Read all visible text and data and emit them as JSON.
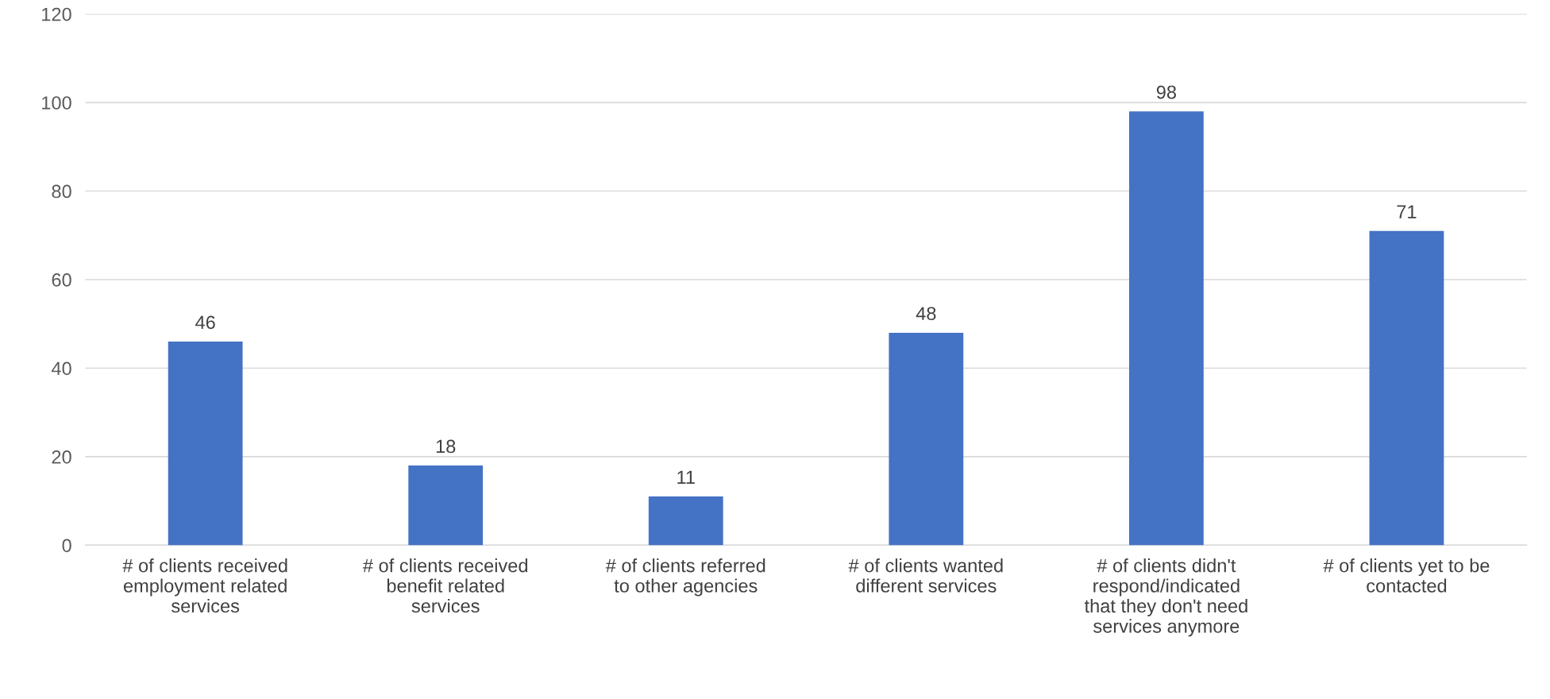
{
  "chart_data": {
    "type": "bar",
    "categories": [
      "# of clients received\nemployment related\nservices",
      "# of clients received\nbenefit related\nservices",
      "# of clients referred\nto other agencies",
      "# of clients wanted\ndifferent services",
      "# of clients didn't\nrespond/indicated\nthat they don't need\nservices anymore",
      "# of clients yet to be\ncontacted"
    ],
    "values": [
      46,
      18,
      11,
      48,
      98,
      71
    ],
    "color": "#4472c4",
    "ylim": [
      0,
      120
    ],
    "yticks": [
      0,
      20,
      40,
      60,
      80,
      100,
      120
    ],
    "grid": "y",
    "data_labels": true
  }
}
